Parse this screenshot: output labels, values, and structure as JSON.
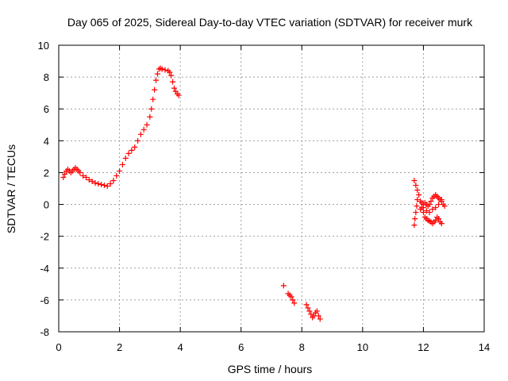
{
  "chart_data": {
    "type": "scatter",
    "title": "Day 065 of 2025, Sidereal Day-to-day VTEC variation (SDTVAR) for receiver murk",
    "xlabel": "GPS time / hours",
    "ylabel": "SDTVAR / TECUs",
    "xlim": [
      0,
      14
    ],
    "ylim": [
      -8,
      10
    ],
    "xticks": [
      0,
      2,
      4,
      6,
      8,
      10,
      12,
      14
    ],
    "yticks": [
      -8,
      -6,
      -4,
      -2,
      0,
      2,
      4,
      6,
      8,
      10
    ],
    "grid": true,
    "marker": "plus",
    "marker_color": "#ff0000",
    "series": [
      {
        "values": [
          [
            0.15,
            1.7
          ],
          [
            0.2,
            1.9
          ],
          [
            0.25,
            2.1
          ],
          [
            0.3,
            2.2
          ],
          [
            0.35,
            2.1
          ],
          [
            0.4,
            2.0
          ],
          [
            0.45,
            2.1
          ],
          [
            0.5,
            2.2
          ],
          [
            0.55,
            2.3
          ],
          [
            0.6,
            2.2
          ],
          [
            0.65,
            2.1
          ],
          [
            0.7,
            2.0
          ],
          [
            0.8,
            1.8
          ],
          [
            0.9,
            1.7
          ],
          [
            1.0,
            1.55
          ],
          [
            1.1,
            1.45
          ],
          [
            1.2,
            1.35
          ],
          [
            1.3,
            1.3
          ],
          [
            1.4,
            1.25
          ],
          [
            1.5,
            1.2
          ],
          [
            1.6,
            1.15
          ],
          [
            1.7,
            1.3
          ],
          [
            1.8,
            1.5
          ],
          [
            1.9,
            1.8
          ],
          [
            2.0,
            2.1
          ],
          [
            2.1,
            2.5
          ],
          [
            2.2,
            2.9
          ],
          [
            2.3,
            3.2
          ],
          [
            2.4,
            3.4
          ],
          [
            2.5,
            3.6
          ],
          [
            2.6,
            4.0
          ],
          [
            2.7,
            4.4
          ],
          [
            2.8,
            4.7
          ],
          [
            2.9,
            5.0
          ],
          [
            3.0,
            5.5
          ],
          [
            3.05,
            6.0
          ],
          [
            3.1,
            6.6
          ],
          [
            3.15,
            7.2
          ],
          [
            3.2,
            7.8
          ],
          [
            3.25,
            8.2
          ],
          [
            3.3,
            8.5
          ],
          [
            3.35,
            8.55
          ],
          [
            3.4,
            8.5
          ],
          [
            3.5,
            8.45
          ],
          [
            3.6,
            8.4
          ],
          [
            3.65,
            8.3
          ],
          [
            3.7,
            8.1
          ],
          [
            3.75,
            7.7
          ],
          [
            3.8,
            7.3
          ],
          [
            3.85,
            7.1
          ],
          [
            3.9,
            6.95
          ],
          [
            3.95,
            6.85
          ]
        ]
      },
      {
        "values": [
          [
            7.4,
            -5.1
          ],
          [
            7.55,
            -5.6
          ],
          [
            7.6,
            -5.7
          ],
          [
            7.65,
            -5.8
          ],
          [
            7.7,
            -6.0
          ],
          [
            7.75,
            -6.2
          ],
          [
            8.15,
            -6.3
          ],
          [
            8.2,
            -6.5
          ],
          [
            8.25,
            -6.7
          ],
          [
            8.3,
            -6.9
          ],
          [
            8.35,
            -7.1
          ],
          [
            8.4,
            -7.0
          ],
          [
            8.45,
            -6.8
          ],
          [
            8.5,
            -6.7
          ],
          [
            8.55,
            -7.0
          ],
          [
            8.6,
            -7.2
          ]
        ]
      },
      {
        "values": [
          [
            11.7,
            -1.3
          ],
          [
            11.72,
            -0.9
          ],
          [
            11.75,
            -0.5
          ],
          [
            11.78,
            -0.1
          ],
          [
            11.8,
            0.3
          ],
          [
            11.7,
            1.5
          ],
          [
            11.75,
            1.2
          ],
          [
            11.8,
            0.9
          ],
          [
            11.85,
            0.6
          ],
          [
            11.9,
            0.2
          ],
          [
            11.95,
            -0.2
          ],
          [
            12.0,
            -0.5
          ],
          [
            12.05,
            -0.8
          ],
          [
            12.1,
            -0.9
          ],
          [
            12.15,
            -1.0
          ],
          [
            12.2,
            -1.05
          ],
          [
            12.25,
            -1.1
          ],
          [
            12.3,
            -1.2
          ],
          [
            12.35,
            -1.1
          ],
          [
            12.4,
            -1.0
          ],
          [
            12.45,
            -0.8
          ],
          [
            12.5,
            -0.9
          ],
          [
            12.55,
            -1.1
          ],
          [
            12.6,
            -1.2
          ],
          [
            12.0,
            0.0
          ],
          [
            12.05,
            0.1
          ],
          [
            12.1,
            0.0
          ],
          [
            12.15,
            -0.1
          ],
          [
            12.2,
            0.0
          ],
          [
            12.25,
            0.2
          ],
          [
            12.3,
            0.4
          ],
          [
            12.35,
            0.5
          ],
          [
            12.4,
            0.6
          ],
          [
            12.45,
            0.5
          ],
          [
            12.5,
            0.4
          ],
          [
            12.55,
            0.3
          ],
          [
            12.6,
            0.2
          ],
          [
            12.65,
            0.0
          ],
          [
            12.7,
            -0.1
          ],
          [
            11.9,
            -0.3
          ],
          [
            11.95,
            0.1
          ],
          [
            12.0,
            -0.2
          ],
          [
            12.1,
            -0.4
          ],
          [
            12.2,
            -0.5
          ],
          [
            12.3,
            -0.3
          ],
          [
            12.4,
            -0.2
          ],
          [
            12.5,
            0.0
          ],
          [
            12.6,
            0.3
          ]
        ]
      }
    ]
  }
}
